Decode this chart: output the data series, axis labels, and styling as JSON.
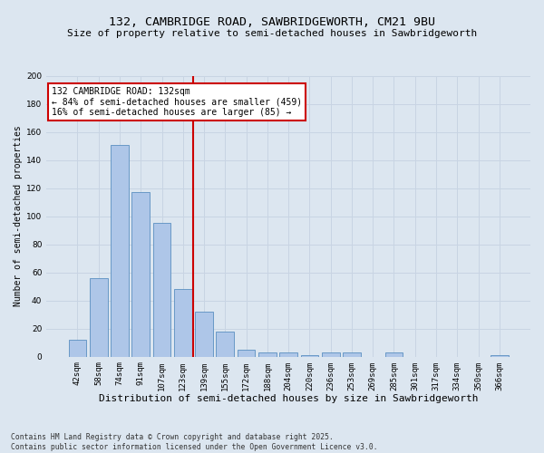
{
  "title": "132, CAMBRIDGE ROAD, SAWBRIDGEWORTH, CM21 9BU",
  "subtitle": "Size of property relative to semi-detached houses in Sawbridgeworth",
  "xlabel": "Distribution of semi-detached houses by size in Sawbridgeworth",
  "ylabel": "Number of semi-detached properties",
  "categories": [
    "42sqm",
    "58sqm",
    "74sqm",
    "91sqm",
    "107sqm",
    "123sqm",
    "139sqm",
    "155sqm",
    "172sqm",
    "188sqm",
    "204sqm",
    "220sqm",
    "236sqm",
    "253sqm",
    "269sqm",
    "285sqm",
    "301sqm",
    "317sqm",
    "334sqm",
    "350sqm",
    "366sqm"
  ],
  "values": [
    12,
    56,
    151,
    117,
    95,
    48,
    32,
    18,
    5,
    3,
    3,
    1,
    3,
    3,
    0,
    3,
    0,
    0,
    0,
    0,
    1
  ],
  "bar_color": "#aec6e8",
  "bar_edge_color": "#5a8fc0",
  "vline_index": 6,
  "vline_color": "#cc0000",
  "annotation_text": "132 CAMBRIDGE ROAD: 132sqm\n← 84% of semi-detached houses are smaller (459)\n16% of semi-detached houses are larger (85) →",
  "annotation_box_facecolor": "#ffffff",
  "annotation_box_edgecolor": "#cc0000",
  "ylim": [
    0,
    200
  ],
  "yticks": [
    0,
    20,
    40,
    60,
    80,
    100,
    120,
    140,
    160,
    180,
    200
  ],
  "grid_color": "#c8d4e3",
  "background_color": "#dce6f0",
  "footer": "Contains HM Land Registry data © Crown copyright and database right 2025.\nContains public sector information licensed under the Open Government Licence v3.0.",
  "title_fontsize": 9.5,
  "subtitle_fontsize": 8,
  "xlabel_fontsize": 8,
  "ylabel_fontsize": 7,
  "tick_fontsize": 6.5,
  "annotation_fontsize": 7,
  "footer_fontsize": 5.8
}
